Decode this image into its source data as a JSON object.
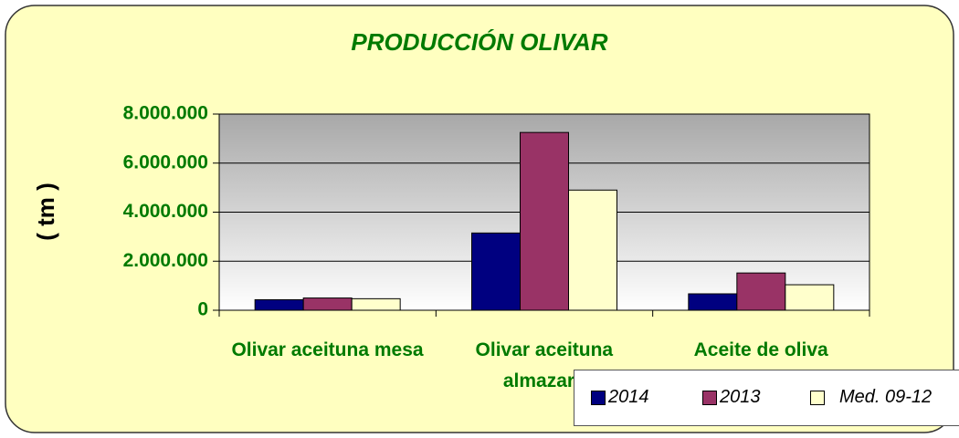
{
  "chart_data": {
    "type": "bar",
    "title": "PRODUCCIÓN  OLIVAR",
    "y_label": "( tm )",
    "categories": [
      "Olivar aceituna mesa",
      "Olivar aceituna almazara",
      "Aceite de oliva"
    ],
    "series": [
      {
        "name": "2014",
        "color": "#000080",
        "values": [
          430000,
          3150000,
          670000
        ]
      },
      {
        "name": "2013",
        "color": "#993366",
        "values": [
          500000,
          7250000,
          1520000
        ]
      },
      {
        "name": "Med. 09-12",
        "color": "#ffffcc",
        "values": [
          470000,
          4900000,
          1040000
        ]
      }
    ],
    "ylim": [
      0,
      8000000
    ],
    "yticks": [
      0,
      {
        "value": 2000000,
        "label": "2.000.000"
      },
      {
        "value": 4000000,
        "label": "4.000.000"
      },
      {
        "value": 6000000,
        "label": "6.000.000"
      },
      {
        "value": 8000000,
        "label": "8.000.000"
      }
    ],
    "grid": true
  }
}
